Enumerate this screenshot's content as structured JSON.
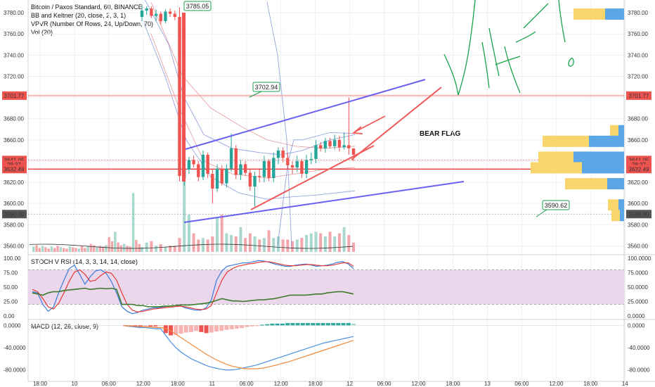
{
  "chart_data": [
    {
      "type": "candlestick",
      "title": "Bitcoin / Paxos Standard, 60, BINANCE",
      "indicators": [
        "BB and Keltner (20, close, 2, 3, 1)",
        "VPVR (Number Of Rows, 24, Up/Down, 70)",
        "Vol (20)"
      ],
      "y_ticks": [
        3560,
        3580,
        3600,
        3620,
        3640,
        3660,
        3680,
        3700,
        3720,
        3740,
        3760,
        3780
      ],
      "y_tick_labels": [
        "3560.00",
        "3580.00",
        "3600.00",
        "3620.00",
        "3640.00",
        "3660.00",
        "3680.00",
        "3700.00",
        "3720.00",
        "3740.00",
        "3760.00",
        "3780.00"
      ],
      "ylim": [
        3553,
        3792
      ],
      "x_labels": [
        "18:00",
        "10",
        "06:00",
        "12:00",
        "18:00",
        "11",
        "06:00",
        "12:00",
        "18:00",
        "12",
        "06:00",
        "12:00",
        "18:00",
        "13",
        "06:00",
        "12:00",
        "18:00",
        "14"
      ],
      "x_label_pos": [
        0,
        12,
        24,
        36,
        48,
        60,
        72,
        84,
        96,
        108,
        120,
        132,
        144,
        156,
        168,
        180,
        192,
        204
      ],
      "price_labels": [
        {
          "text": "3701.77",
          "value": 3701.77,
          "color": "#ef5350"
        },
        {
          "text": "3641.05",
          "value": 3641.05,
          "color": "#ef5350"
        },
        {
          "text": "28:37",
          "value": 3636.5,
          "color": "#ef5350"
        },
        {
          "text": "3632.49",
          "value": 3632.49,
          "color": "#ef5350"
        },
        {
          "text": "3590.00",
          "value": 3590.0,
          "color": "#555555"
        }
      ],
      "h_lines": [
        3701.77,
        3632.49,
        3641.05,
        3590.0
      ],
      "callouts": [
        {
          "text": "3785.05",
          "x": 55,
          "y": 3785
        },
        {
          "text": "3702.94",
          "x": 82,
          "y": 3702.94
        },
        {
          "text": "3590.62",
          "x": 177,
          "y": 3590.62
        }
      ],
      "annotation": "BEAR FLAG",
      "candles_o": [
        3776,
        3782,
        3784,
        3777,
        3779,
        3772,
        3781,
        3779,
        3776,
        3624,
        3632,
        3641,
        3637,
        3625,
        3646,
        3628,
        3614,
        3633,
        3619,
        3633,
        3652,
        3627,
        3637,
        3629,
        3616,
        3626,
        3625,
        3640,
        3624,
        3643,
        3650,
        3643,
        3636,
        3634,
        3640,
        3628,
        3641,
        3642,
        3655,
        3652,
        3659,
        3654,
        3660,
        3653,
        3655,
        3652
      ],
      "candles_c": [
        3782,
        3784,
        3777,
        3779,
        3772,
        3781,
        3779,
        3776,
        3626,
        3632,
        3641,
        3637,
        3625,
        3646,
        3628,
        3614,
        3633,
        3619,
        3633,
        3652,
        3627,
        3637,
        3629,
        3616,
        3626,
        3625,
        3640,
        3624,
        3643,
        3650,
        3643,
        3636,
        3634,
        3640,
        3628,
        3641,
        3642,
        3655,
        3652,
        3659,
        3654,
        3660,
        3653,
        3655,
        3652,
        3646
      ],
      "candles_h": [
        3787,
        3786,
        3786,
        3783,
        3781,
        3783,
        3784,
        3782,
        3785,
        3636,
        3644,
        3645,
        3640,
        3650,
        3648,
        3632,
        3637,
        3636,
        3637,
        3666,
        3655,
        3641,
        3640,
        3632,
        3630,
        3632,
        3645,
        3642,
        3648,
        3653,
        3653,
        3648,
        3640,
        3645,
        3642,
        3646,
        3648,
        3660,
        3658,
        3662,
        3662,
        3665,
        3664,
        3667,
        3700,
        3650
      ],
      "candles_l": [
        3772,
        3778,
        3775,
        3772,
        3769,
        3770,
        3776,
        3773,
        3621,
        3617,
        3628,
        3634,
        3621,
        3622,
        3624,
        3600,
        3611,
        3617,
        3615,
        3630,
        3623,
        3622,
        3626,
        3612,
        3597,
        3620,
        3620,
        3621,
        3620,
        3637,
        3639,
        3632,
        3628,
        3630,
        3624,
        3624,
        3637,
        3638,
        3649,
        3648,
        3652,
        3651,
        3649,
        3651,
        3646,
        3640
      ],
      "volume": [
        3,
        6,
        7,
        4,
        5,
        3,
        4,
        4,
        9,
        46,
        24,
        12,
        8,
        9,
        8,
        10,
        22,
        24,
        12,
        11,
        10,
        16,
        9,
        12,
        10,
        8,
        9,
        14,
        9,
        10,
        8,
        8,
        7,
        8,
        9,
        11,
        12,
        13,
        12,
        10,
        13,
        10,
        12,
        16,
        11,
        6
      ],
      "stoch_ticks": [
        0,
        25,
        50,
        75,
        100
      ],
      "stoch_tick_labels": [
        "0.0000",
        "25.0000",
        "50.0000",
        "75.0000",
        "100.0000"
      ],
      "stoch_left_labels": [
        "0.00",
        "25.00",
        "50.00",
        "75.00",
        "100.00"
      ],
      "stoch_title": "STOCH V RSI (14, 3, 3, 14, 14, close)",
      "stoch_k": [
        42,
        40,
        20,
        8,
        15,
        40,
        62,
        82,
        88,
        72,
        55,
        68,
        78,
        80,
        74,
        60,
        40,
        16,
        8,
        4,
        6,
        10,
        12,
        14,
        14,
        16,
        17,
        18,
        18,
        14,
        12,
        10,
        10,
        14,
        28,
        62,
        78,
        86,
        88,
        90,
        92,
        92,
        94,
        96,
        95,
        93,
        90,
        88,
        86,
        86,
        88,
        89,
        90,
        88,
        86,
        87,
        88,
        90,
        93,
        94,
        90,
        82
      ],
      "stoch_d": [
        46,
        42,
        30,
        16,
        12,
        22,
        40,
        60,
        76,
        80,
        72,
        60,
        62,
        70,
        76,
        74,
        62,
        40,
        20,
        10,
        7,
        8,
        10,
        12,
        13,
        14,
        15,
        16,
        17,
        16,
        14,
        12,
        11,
        12,
        18,
        40,
        62,
        76,
        82,
        86,
        88,
        90,
        91,
        93,
        94,
        94,
        92,
        90,
        88,
        87,
        87,
        88,
        89,
        89,
        88,
        87,
        87,
        88,
        90,
        92,
        92,
        86
      ],
      "stoch_rsi": [
        40,
        38,
        36,
        40,
        42,
        42,
        44,
        45,
        46,
        47,
        48,
        46,
        47,
        48,
        47,
        48,
        46,
        20,
        20,
        20,
        18,
        18,
        16,
        16,
        16,
        17,
        17,
        18,
        19,
        19,
        19,
        20,
        21,
        22,
        24,
        27,
        30,
        28,
        26,
        26,
        25,
        26,
        27,
        28,
        28,
        29,
        30,
        32,
        34,
        36,
        36,
        36,
        36,
        37,
        38,
        38,
        40,
        41,
        42,
        42,
        40,
        38
      ],
      "macd_title": "MACD (12, 26, close, 9)",
      "macd_ticks": [
        0,
        -40,
        -80
      ],
      "macd_tick_labels": [
        "0.0000",
        "-40.0000",
        "-80.0000"
      ],
      "macd_left_labels": [
        "0.0000",
        "-40.0000",
        "-80.0000"
      ],
      "macd_ylim": [
        -98,
        8
      ],
      "macd_hist": [
        -1,
        -2,
        -3,
        -3,
        -2,
        -2,
        -2,
        -1,
        -14,
        -18,
        -17,
        -15,
        -13,
        -12,
        -10,
        -12,
        -14,
        -13,
        -11,
        -10,
        -8,
        -7,
        -6,
        -5,
        -3,
        -2,
        -1,
        1,
        2,
        3,
        3,
        3,
        4,
        4,
        4,
        4,
        4,
        4,
        4,
        4,
        4,
        4,
        4,
        4,
        4,
        3
      ],
      "macd_line": [
        -1,
        -2,
        -3,
        -4,
        -4,
        -5,
        -6,
        -6,
        -18,
        -30,
        -40,
        -48,
        -54,
        -60,
        -64,
        -68,
        -72,
        -75,
        -77,
        -79,
        -80,
        -80,
        -79,
        -77,
        -75,
        -73,
        -71,
        -68,
        -65,
        -62,
        -59,
        -56,
        -53,
        -50,
        -47,
        -44,
        -41,
        -38,
        -35,
        -32,
        -30,
        -28,
        -26,
        -24,
        -22,
        -20
      ],
      "signal_line": [
        -1,
        -1,
        -2,
        -2,
        -3,
        -3,
        -4,
        -4,
        -6,
        -10,
        -16,
        -22,
        -28,
        -34,
        -40,
        -46,
        -52,
        -57,
        -62,
        -66,
        -70,
        -73,
        -75,
        -77,
        -78,
        -78,
        -78,
        -77,
        -75,
        -73,
        -71,
        -68,
        -66,
        -63,
        -60,
        -57,
        -54,
        -51,
        -48,
        -45,
        -42,
        -39,
        -36,
        -33,
        -30,
        -27
      ],
      "vpvr_rows": [
        {
          "price": 3780,
          "buy": 45,
          "sell": 27
        },
        {
          "price": 3670,
          "buy": 12,
          "sell": 8
        },
        {
          "price": 3660,
          "buy": 66,
          "sell": 50
        },
        {
          "price": 3645,
          "buy": 50,
          "sell": 72
        },
        {
          "price": 3635,
          "buy": 73,
          "sell": 60
        },
        {
          "price": 3620,
          "buy": 60,
          "sell": 24
        },
        {
          "price": 3600,
          "buy": 15,
          "sell": 8
        },
        {
          "price": 3590,
          "buy": 12,
          "sell": 6
        }
      ]
    }
  ],
  "colors": {
    "up": "#26a69a",
    "down": "#ef5350",
    "bb": "#7b8fd6",
    "bb2": "#e08b8b",
    "trend": "#6a5ff0",
    "arrow": "#f05a5a",
    "note": "#19a34a",
    "stochK": "#3b7bdc",
    "stochD": "#e53935",
    "stochRSI": "#3c7a2c",
    "macd": "#4a90e2",
    "signal": "#ef8a3c"
  }
}
